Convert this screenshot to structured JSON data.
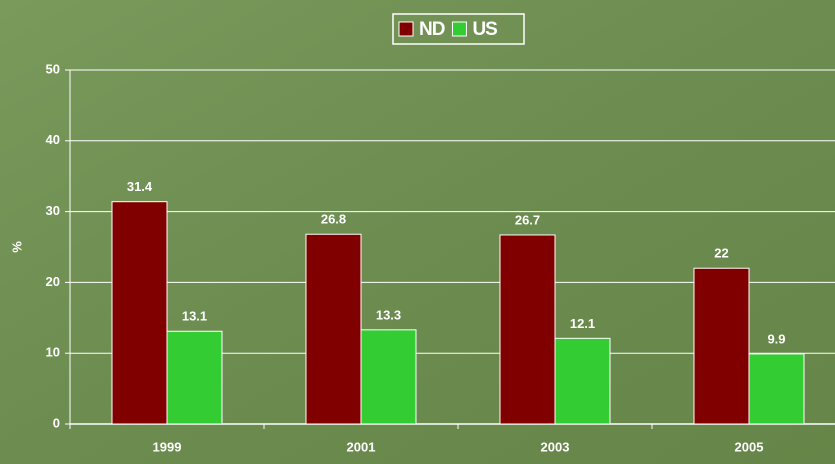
{
  "chart_data": {
    "type": "bar",
    "categories": [
      "1999",
      "2001",
      "2003",
      "2005"
    ],
    "series": [
      {
        "name": "ND",
        "color": "#800000",
        "values": [
          31.4,
          26.8,
          26.7,
          22
        ]
      },
      {
        "name": "US",
        "color": "#33cc33",
        "values": [
          13.1,
          13.3,
          12.1,
          9.9
        ]
      }
    ],
    "y_label": "%",
    "ylim": [
      0,
      50
    ],
    "yticks": [
      0,
      10,
      20,
      30,
      40,
      50
    ],
    "grid": true,
    "legend": "top"
  }
}
